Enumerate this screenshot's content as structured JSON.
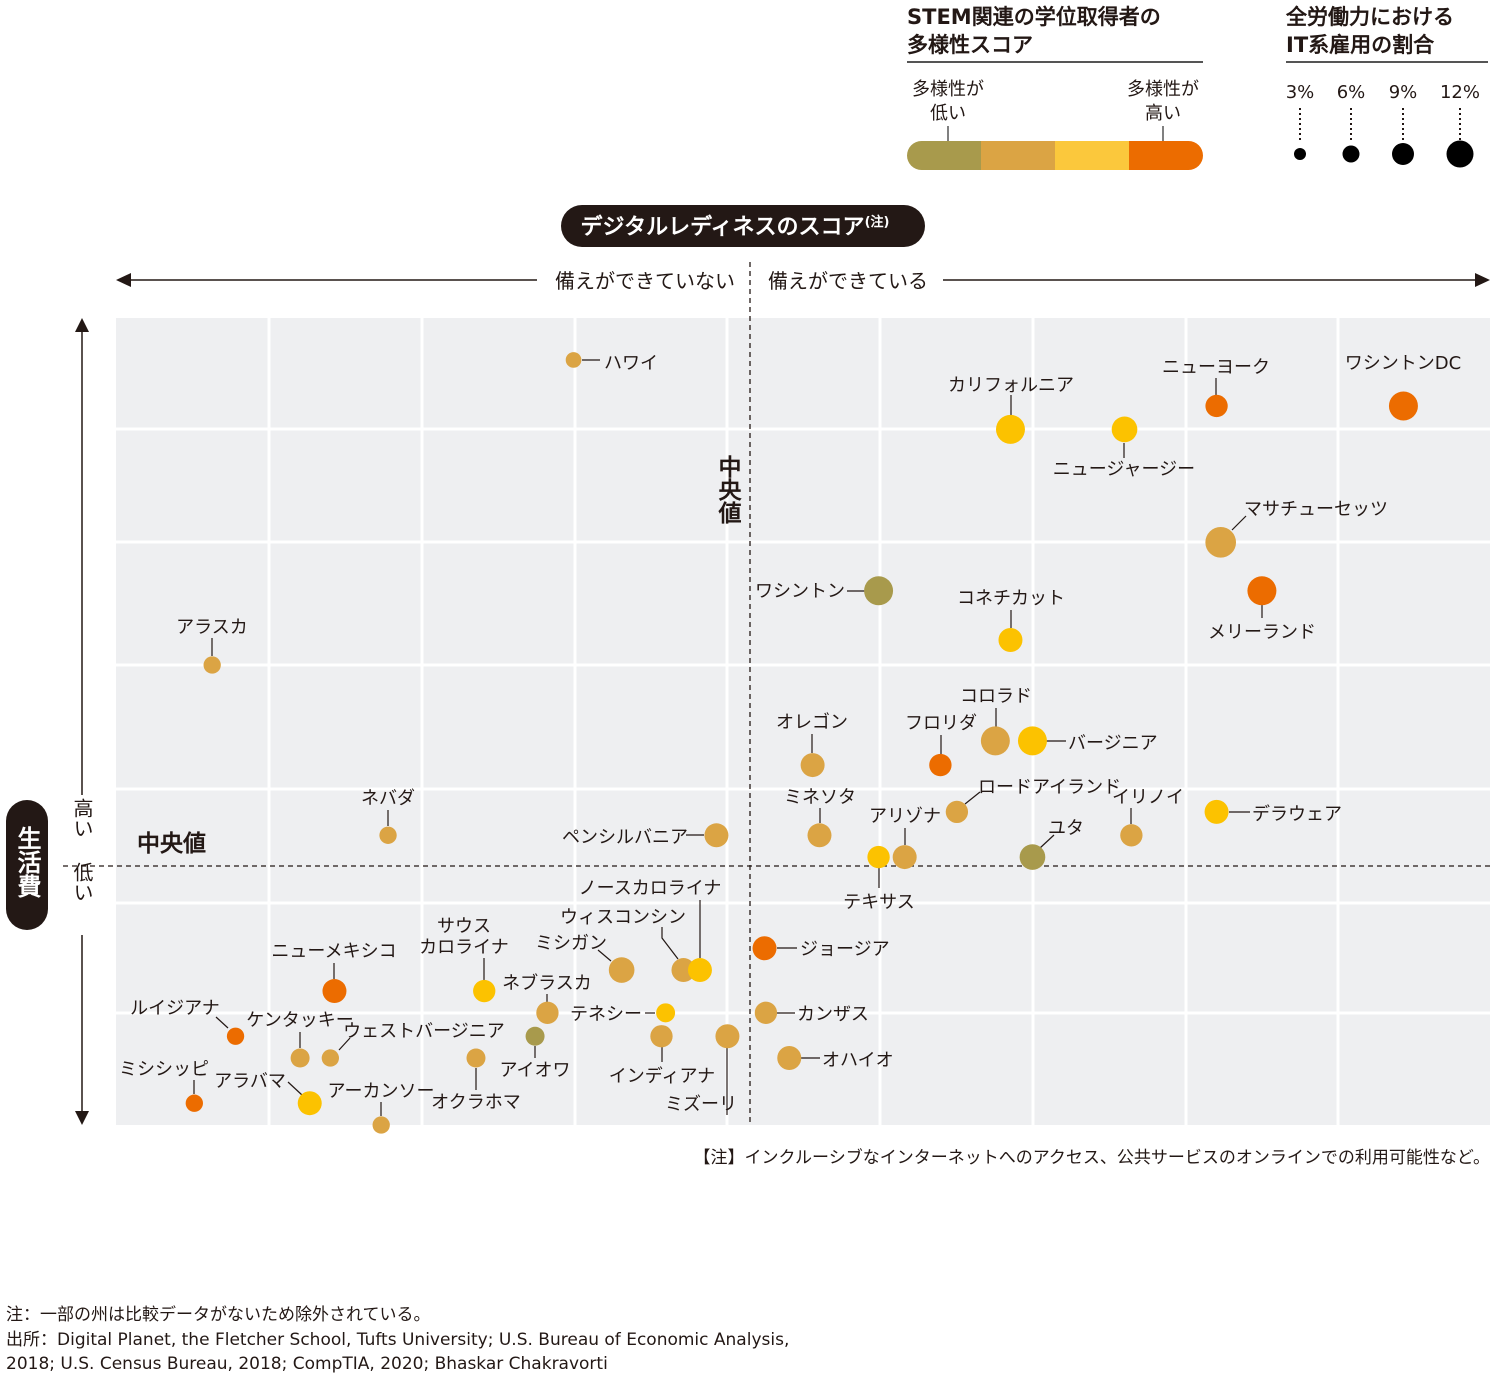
{
  "legend": {
    "stem_title_lines": [
      "STEM関連の学位取得者の",
      "多様性スコア"
    ],
    "stem_low_lines": [
      "多様性が",
      "低い"
    ],
    "stem_high_lines": [
      "多様性が",
      "高い"
    ],
    "stem_colors": [
      "#a89a4c",
      "#dba444",
      "#fbc83c",
      "#ec6c00"
    ],
    "it_title_lines": [
      "全労働力における",
      "IT系雇用の割合"
    ],
    "it_sizes": [
      {
        "label": "3%",
        "pct": 3
      },
      {
        "label": "6%",
        "pct": 6
      },
      {
        "label": "9%",
        "pct": 9
      },
      {
        "label": "12%",
        "pct": 12
      }
    ]
  },
  "chart_data": {
    "type": "scatter",
    "title": "デジタルレディネスのスコア",
    "title_note": "(注)",
    "xlabel_left": "備えができていない",
    "xlabel_right": "備えができている",
    "ylabel": "生活費",
    "ylabel_high": "高い",
    "ylabel_low": "低い",
    "median_label_h": "中央値",
    "median_label_v": "中央値",
    "xlim": [
      0,
      100
    ],
    "ylim": [
      0,
      100
    ],
    "x_median": 46.1,
    "y_median": 32.1,
    "grid": true,
    "units_note": "relative position; no numeric ticks shown",
    "stem_colors": {
      "1": "#a89a4c",
      "2": "#dba444",
      "3": "#fcc200",
      "4": "#ec6c00"
    },
    "points": [
      {
        "label": "ハワイ",
        "x": 33.3,
        "y": 94.8,
        "stem": 2,
        "it_pct": 4
      },
      {
        "label": "カリフォルニア",
        "x": 65.1,
        "y": 86.2,
        "stem": 3,
        "it_pct": 12
      },
      {
        "label": "ニュージャージー",
        "x": 73.4,
        "y": 86.2,
        "stem": 3,
        "it_pct": 10
      },
      {
        "label": "ニューヨーク",
        "x": 80.1,
        "y": 89.1,
        "stem": 4,
        "it_pct": 8
      },
      {
        "label": "ワシントンDC",
        "x": 93.7,
        "y": 89.1,
        "stem": 4,
        "it_pct": 12
      },
      {
        "label": "マサチューセッツ",
        "x": 80.4,
        "y": 72.2,
        "stem": 2,
        "it_pct": 13
      },
      {
        "label": "ワシントン",
        "x": 55.5,
        "y": 66.2,
        "stem": 1,
        "it_pct": 12
      },
      {
        "label": "コネチカット",
        "x": 65.1,
        "y": 60.1,
        "stem": 3,
        "it_pct": 9
      },
      {
        "label": "メリーランド",
        "x": 83.4,
        "y": 66.2,
        "stem": 4,
        "it_pct": 12
      },
      {
        "label": "アラスカ",
        "x": 7.0,
        "y": 57.0,
        "stem": 2,
        "it_pct": 5
      },
      {
        "label": "オレゴン",
        "x": 50.7,
        "y": 44.6,
        "stem": 2,
        "it_pct": 9
      },
      {
        "label": "フロリダ",
        "x": 60.0,
        "y": 44.6,
        "stem": 4,
        "it_pct": 8
      },
      {
        "label": "コロラド",
        "x": 64.0,
        "y": 47.6,
        "stem": 2,
        "it_pct": 12
      },
      {
        "label": "バージニア",
        "x": 66.7,
        "y": 47.6,
        "stem": 3,
        "it_pct": 12
      },
      {
        "label": "ミネソタ",
        "x": 51.2,
        "y": 35.9,
        "stem": 2,
        "it_pct": 9
      },
      {
        "label": "アリゾナ",
        "x": 57.4,
        "y": 33.2,
        "stem": 2,
        "it_pct": 9
      },
      {
        "label": "テキサス",
        "x": 55.5,
        "y": 33.2,
        "stem": 3,
        "it_pct": 8
      },
      {
        "label": "ロードアイランド",
        "x": 61.2,
        "y": 38.8,
        "stem": 2,
        "it_pct": 8
      },
      {
        "label": "ユタ",
        "x": 66.7,
        "y": 33.2,
        "stem": 1,
        "it_pct": 10
      },
      {
        "label": "イリノイ",
        "x": 73.9,
        "y": 35.9,
        "stem": 2,
        "it_pct": 8
      },
      {
        "label": "デラウェア",
        "x": 80.1,
        "y": 38.8,
        "stem": 3,
        "it_pct": 9
      },
      {
        "label": "ネバダ",
        "x": 19.8,
        "y": 35.9,
        "stem": 2,
        "it_pct": 5
      },
      {
        "label": "ペンシルバニア",
        "x": 43.7,
        "y": 35.9,
        "stem": 2,
        "it_pct": 9
      },
      {
        "label": "ジョージア",
        "x": 47.2,
        "y": 21.9,
        "stem": 4,
        "it_pct": 9
      },
      {
        "label": "カンザス",
        "x": 47.3,
        "y": 13.9,
        "stem": 2,
        "it_pct": 8
      },
      {
        "label": "オハイオ",
        "x": 49.0,
        "y": 8.3,
        "stem": 2,
        "it_pct": 9
      },
      {
        "label": "ニューメキシコ",
        "x": 15.9,
        "y": 16.6,
        "stem": 4,
        "it_pct": 9
      },
      {
        "label": "サウスカロライナ",
        "lines": [
          "サウス",
          "カロライナ"
        ],
        "x": 26.8,
        "y": 16.6,
        "stem": 3,
        "it_pct": 8
      },
      {
        "label": "ミシガン",
        "x": 36.8,
        "y": 19.2,
        "stem": 2,
        "it_pct": 10
      },
      {
        "label": "ウィスコンシン",
        "x": 41.3,
        "y": 19.2,
        "stem": 2,
        "it_pct": 9
      },
      {
        "label": "ノースカロライナ",
        "x": 42.5,
        "y": 19.2,
        "stem": 3,
        "it_pct": 9
      },
      {
        "label": "ネブラスカ",
        "x": 31.4,
        "y": 13.9,
        "stem": 2,
        "it_pct": 8
      },
      {
        "label": "テネシー",
        "x": 40.0,
        "y": 13.9,
        "stem": 3,
        "it_pct": 6
      },
      {
        "label": "アイオワ",
        "x": 30.5,
        "y": 11.0,
        "stem": 1,
        "it_pct": 6
      },
      {
        "label": "インディアナ",
        "x": 39.7,
        "y": 11.0,
        "stem": 2,
        "it_pct": 8
      },
      {
        "label": "ミズーリ",
        "x": 44.5,
        "y": 11.0,
        "stem": 2,
        "it_pct": 9
      },
      {
        "label": "ルイジアナ",
        "x": 8.7,
        "y": 11.0,
        "stem": 4,
        "it_pct": 5
      },
      {
        "label": "ケンタッキー",
        "x": 13.4,
        "y": 8.3,
        "stem": 2,
        "it_pct": 6
      },
      {
        "label": "ウェストバージニア",
        "x": 15.6,
        "y": 8.3,
        "stem": 2,
        "it_pct": 5
      },
      {
        "label": "オクラホマ",
        "x": 26.2,
        "y": 8.3,
        "stem": 2,
        "it_pct": 6
      },
      {
        "label": "ミシシッピ",
        "x": 5.7,
        "y": 2.7,
        "stem": 4,
        "it_pct": 5
      },
      {
        "label": "アラバマ",
        "x": 14.1,
        "y": 2.7,
        "stem": 3,
        "it_pct": 9
      },
      {
        "label": "アーカンソー",
        "x": 19.3,
        "y": 0.0,
        "stem": 2,
        "it_pct": 5
      }
    ]
  },
  "annotation": "【注】インクルーシブなインターネットへのアクセス、公共サービスのオンラインでの利用可能性など。",
  "footer": {
    "note": "注：一部の州は比較データがないため除外されている。",
    "source_lines": [
      "出所：Digital Planet, the Fletcher School, Tufts University; U.S. Bureau of Economic Analysis,",
      "2018; U.S. Census Bureau, 2018; CompTIA, 2020; Bhaskar Chakravorti"
    ]
  }
}
